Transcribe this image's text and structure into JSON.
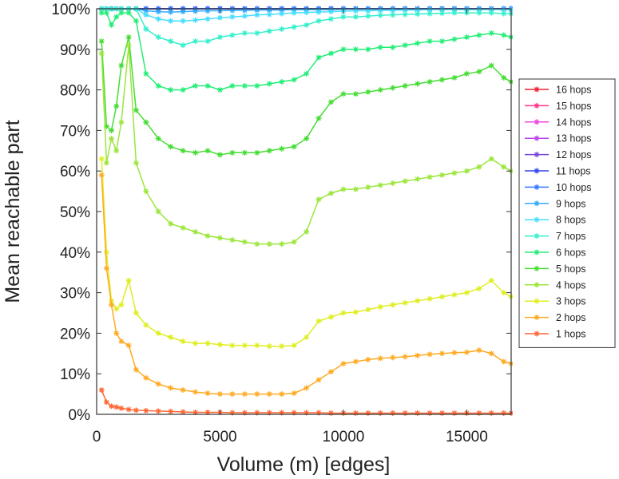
{
  "chart_data": {
    "type": "line",
    "title": "",
    "xlabel": "Volume (m) [edges]",
    "ylabel": "Mean reachable part",
    "xlim": [
      0,
      16800
    ],
    "ylim": [
      0,
      100
    ],
    "x_ticks": [
      0,
      5000,
      10000,
      15000
    ],
    "x_tick_labels": [
      "0",
      "5000",
      "10000",
      "15000"
    ],
    "y_ticks": [
      0,
      10,
      20,
      30,
      40,
      50,
      60,
      70,
      80,
      90,
      100
    ],
    "y_tick_labels": [
      "0%",
      "10%",
      "20%",
      "30%",
      "40%",
      "50%",
      "60%",
      "70%",
      "80%",
      "90%",
      "100%"
    ],
    "grid": false,
    "legend_position": "right",
    "marker": "star",
    "x": [
      200,
      400,
      600,
      800,
      1000,
      1300,
      1600,
      2000,
      2500,
      3000,
      3500,
      4000,
      4500,
      5000,
      5500,
      6000,
      6500,
      7000,
      7500,
      8000,
      8500,
      9000,
      9500,
      10000,
      10500,
      11000,
      11500,
      12000,
      12500,
      13000,
      13500,
      14000,
      14500,
      15000,
      15500,
      16000,
      16500,
      16800
    ],
    "series": [
      {
        "name": "1 hops",
        "color": "#ff6633",
        "values": [
          6,
          3,
          2,
          1.8,
          1.5,
          1.2,
          1,
          0.9,
          0.8,
          0.7,
          0.6,
          0.5,
          0.5,
          0.5,
          0.4,
          0.4,
          0.4,
          0.4,
          0.4,
          0.4,
          0.4,
          0.4,
          0.3,
          0.3,
          0.3,
          0.3,
          0.3,
          0.3,
          0.3,
          0.3,
          0.3,
          0.3,
          0.3,
          0.3,
          0.3,
          0.3,
          0.3,
          0.3
        ]
      },
      {
        "name": "2 hops",
        "color": "#ffaa22",
        "values": [
          59,
          36,
          27,
          20,
          18,
          17,
          11,
          9,
          7.5,
          6.5,
          6,
          5.5,
          5.2,
          5,
          5,
          5,
          5,
          5,
          5,
          5.2,
          6.5,
          8.5,
          10.5,
          12.5,
          13,
          13.5,
          13.8,
          14,
          14.2,
          14.5,
          14.8,
          15,
          15.2,
          15.3,
          15.8,
          15,
          13,
          12.5
        ]
      },
      {
        "name": "3 hops",
        "color": "#dfee22",
        "values": [
          63,
          40,
          28,
          26,
          27,
          33,
          25,
          22,
          20,
          19,
          18,
          17.5,
          17.5,
          17.2,
          17,
          17,
          17,
          16.8,
          16.8,
          17,
          19,
          23,
          24,
          25,
          25.2,
          25.8,
          26.5,
          27,
          27.5,
          28,
          28.5,
          29,
          29.5,
          30,
          31,
          33,
          30,
          29
        ]
      },
      {
        "name": "4 hops",
        "color": "#9be63b",
        "values": [
          89,
          62,
          68,
          65,
          72,
          91,
          62,
          55,
          50,
          47,
          46,
          45,
          44,
          43.5,
          43,
          42.5,
          42,
          42,
          42,
          42.5,
          45,
          53,
          54.5,
          55.5,
          55.5,
          56,
          56.5,
          57,
          57.5,
          58,
          58.5,
          59,
          59.5,
          60,
          61,
          63,
          61,
          60
        ]
      },
      {
        "name": "5 hops",
        "color": "#44dd33",
        "values": [
          92,
          71,
          70,
          76,
          86,
          93,
          75,
          72,
          68,
          66,
          65,
          64.5,
          65,
          64,
          64.5,
          64.5,
          64.5,
          65,
          65.5,
          66,
          68,
          73,
          77,
          79,
          79,
          79.5,
          80,
          80.5,
          81,
          81.5,
          82,
          82.5,
          83,
          84,
          84.5,
          86,
          83,
          82
        ]
      },
      {
        "name": "6 hops",
        "color": "#22ee77",
        "values": [
          99,
          99,
          96,
          98,
          99,
          99,
          97,
          84,
          81,
          80,
          80,
          81,
          81,
          80,
          81,
          81,
          81,
          81.5,
          82,
          82.5,
          84,
          88,
          89,
          90,
          90,
          90,
          90.5,
          90.5,
          91,
          91.5,
          92,
          92,
          92.5,
          93,
          93.5,
          94,
          93.5,
          93
        ]
      },
      {
        "name": "7 hops",
        "color": "#33f0cc",
        "values": [
          100,
          100,
          100,
          100,
          100,
          100,
          100,
          95,
          93,
          92,
          91,
          92,
          92,
          93,
          93.5,
          94,
          94,
          94.5,
          95,
          95.5,
          96,
          97,
          97.5,
          98,
          98,
          98.2,
          98.4,
          98.5,
          98.6,
          98.7,
          98.8,
          98.9,
          99,
          99,
          99,
          99,
          98.8,
          98.8
        ]
      },
      {
        "name": "8 hops",
        "color": "#44ddff",
        "values": [
          100,
          100,
          100,
          100,
          100,
          100,
          100,
          98.5,
          97.5,
          97,
          97,
          97.2,
          97.5,
          97.8,
          98,
          98.2,
          98.5,
          98.6,
          98.8,
          99,
          99.1,
          99.2,
          99.3,
          99.4,
          99.5,
          99.5,
          99.6,
          99.6,
          99.7,
          99.7,
          99.8,
          99.8,
          99.8,
          99.8,
          99.8,
          99.8,
          99.8,
          99.8
        ]
      },
      {
        "name": "9 hops",
        "color": "#33aaff",
        "values": [
          100,
          100,
          100,
          100,
          100,
          100,
          100,
          99.5,
          99.3,
          99.2,
          99.3,
          99.4,
          99.5,
          99.5,
          99.6,
          99.6,
          99.7,
          99.7,
          99.7,
          99.8,
          99.8,
          99.8,
          99.8,
          99.9,
          99.9,
          99.9,
          99.9,
          99.9,
          99.9,
          99.9,
          99.9,
          99.9,
          99.9,
          99.9,
          99.9,
          99.9,
          99.9,
          99.9
        ]
      },
      {
        "name": "10 hops",
        "color": "#3377ff",
        "values": [
          100,
          100,
          100,
          100,
          100,
          100,
          100,
          100,
          100,
          100,
          100,
          100,
          100,
          100,
          100,
          100,
          100,
          100,
          100,
          100,
          100,
          100,
          100,
          100,
          100,
          100,
          100,
          100,
          100,
          100,
          100,
          100,
          100,
          100,
          100,
          100,
          100,
          100
        ]
      },
      {
        "name": "11 hops",
        "color": "#3344ee",
        "values": [
          100,
          100,
          100,
          100,
          100,
          100,
          100,
          100,
          100,
          100,
          100,
          100,
          100,
          100,
          100,
          100,
          100,
          100,
          100,
          100,
          100,
          100,
          100,
          100,
          100,
          100,
          100,
          100,
          100,
          100,
          100,
          100,
          100,
          100,
          100,
          100,
          100,
          100
        ]
      },
      {
        "name": "12 hops",
        "color": "#7744dd",
        "values": [
          100,
          100,
          100,
          100,
          100,
          100,
          100,
          100,
          100,
          100,
          100,
          100,
          100,
          100,
          100,
          100,
          100,
          100,
          100,
          100,
          100,
          100,
          100,
          100,
          100,
          100,
          100,
          100,
          100,
          100,
          100,
          100,
          100,
          100,
          100,
          100,
          100,
          100
        ]
      },
      {
        "name": "13 hops",
        "color": "#bb44ee",
        "values": [
          100,
          100,
          100,
          100,
          100,
          100,
          100,
          100,
          100,
          100,
          100,
          100,
          100,
          100,
          100,
          100,
          100,
          100,
          100,
          100,
          100,
          100,
          100,
          100,
          100,
          100,
          100,
          100,
          100,
          100,
          100,
          100,
          100,
          100,
          100,
          100,
          100,
          100
        ]
      },
      {
        "name": "14 hops",
        "color": "#ee44dd",
        "values": [
          100,
          100,
          100,
          100,
          100,
          100,
          100,
          100,
          100,
          100,
          100,
          100,
          100,
          100,
          100,
          100,
          100,
          100,
          100,
          100,
          100,
          100,
          100,
          100,
          100,
          100,
          100,
          100,
          100,
          100,
          100,
          100,
          100,
          100,
          100,
          100,
          100,
          100
        ]
      },
      {
        "name": "15 hops",
        "color": "#ff3388",
        "values": [
          100,
          100,
          100,
          100,
          100,
          100,
          100,
          100,
          100,
          100,
          100,
          100,
          100,
          100,
          100,
          100,
          100,
          100,
          100,
          100,
          100,
          100,
          100,
          100,
          100,
          100,
          100,
          100,
          100,
          100,
          100,
          100,
          100,
          100,
          100,
          100,
          100,
          100
        ]
      },
      {
        "name": "16 hops",
        "color": "#ee2233",
        "values": [
          100,
          100,
          100,
          100,
          100,
          100,
          100,
          100,
          100,
          100,
          100,
          100,
          100,
          100,
          100,
          100,
          100,
          100,
          100,
          100,
          100,
          100,
          100,
          100,
          100,
          100,
          100,
          100,
          100,
          100,
          100,
          100,
          100,
          100,
          100,
          100,
          100,
          100
        ]
      }
    ]
  }
}
